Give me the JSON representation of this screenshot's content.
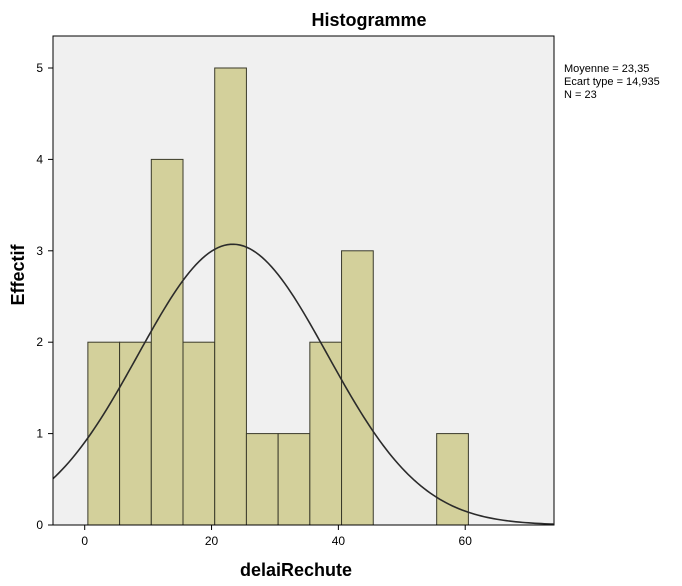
{
  "chart_data": {
    "type": "bar",
    "title": "Histogramme",
    "xlabel": "delaiRechute",
    "ylabel": "Effectif",
    "xlim": [
      -5,
      74
    ],
    "ylim": [
      0,
      5.35
    ],
    "x_ticks": [
      0,
      20,
      40,
      60
    ],
    "y_ticks": [
      0,
      1,
      2,
      3,
      4,
      5
    ],
    "bins": [
      {
        "from": 0.5,
        "to": 5.5,
        "count": 2
      },
      {
        "from": 5.5,
        "to": 10.5,
        "count": 2
      },
      {
        "from": 10.5,
        "to": 15.5,
        "count": 4
      },
      {
        "from": 15.5,
        "to": 20.5,
        "count": 2
      },
      {
        "from": 20.5,
        "to": 25.5,
        "count": 5
      },
      {
        "from": 25.5,
        "to": 30.5,
        "count": 1
      },
      {
        "from": 30.5,
        "to": 35.5,
        "count": 1
      },
      {
        "from": 35.5,
        "to": 40.5,
        "count": 2
      },
      {
        "from": 40.5,
        "to": 45.5,
        "count": 3
      },
      {
        "from": 45.5,
        "to": 50.5,
        "count": 0
      },
      {
        "from": 50.5,
        "to": 55.5,
        "count": 0
      },
      {
        "from": 55.5,
        "to": 60.5,
        "count": 1
      }
    ],
    "normal_curve": {
      "mean": 23.35,
      "sd": 14.935,
      "n": 23,
      "bin_width": 5
    },
    "stats": [
      "Moyenne = 23,35",
      "Ecart type = 14,935",
      "N = 23"
    ]
  }
}
